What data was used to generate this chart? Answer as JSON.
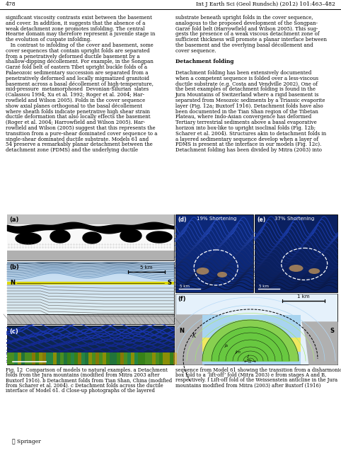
{
  "page_num": "478",
  "journal_header": "Int J Earth Sci (Geol Rundsch) (2012) 101:463–482",
  "background_color": "#ffffff",
  "left_col_lines": [
    "significant viscosity contrasts exist between the basement",
    "and cover. In addition, it suggests that the absence of a",
    "weak detachment zone promotes infolding. The central",
    "Hearne domain may therefore represent a juvenile stage in",
    "the evolution of cuspate infolding.",
    "   In contrast to infolding of the cover and basement, some",
    "cover sequences that contain upright folds are separated",
    "from a penetratively deformed ductile basement by a",
    "shallow-dipping décollement. For example, in the Songpan",
    "Garzé fold belt of eastern Tibet upright buckle folds of a",
    "Palaeozoic sedimentary succession are separated from a",
    "penetratively deformed and locally migmatized granitoid",
    "basement across a basal décollement of high-temperature,",
    "mid-pressure  metamorphosed  Devonian-Silurian  slates",
    "(Calassou 1994; Xu et al. 1992; Roger et al. 2004; Har-",
    "rowfield and Wilson 2005). Folds in the cover sequence",
    "show axial planes orthogonal to the basal décollement",
    "where sheath folds indicate penetrative high shear strain",
    "ductile deformation that also locally effects the basement",
    "(Roger et al. 2004; Harrowfield and Wilson 2005). Har-",
    "rowfield and Wilson (2005) suggest that this represents the",
    "transition from a pure-shear dominated cover sequence to a",
    "single-shear dominated ductile substrate. Models 61 and",
    "54 preserve a remarkably planar detachment between the",
    "detachment zone (PDMS) and the underlying ductile"
  ],
  "right_col_lines": [
    "substrate beneath upright folds in the cover sequence,",
    "analogous to the proposed development of the Songpan-",
    "Garzé fold belt (Harrowfield and Wilson 2005). This sug-",
    "gests the presence of a weak viscous detachment zone of",
    "sufficient thickness will promote a planar interface between",
    "the basement and the overlying basal décollement and",
    "cover sequence.",
    "",
    "Detachment folding",
    "",
    "Detachment folding has been extensively documented",
    "when a competent sequence is folded over a less-viscous",
    "ductile substrate (e.g. Costa and Vendville 2002). One of",
    "the best examples of detachment folding is found in the",
    "Jura Mountains of Switzerland where a rigid basement is",
    "separated from Mesozoic sediments by a Triassic evaporite",
    "layer (Fig. 12a; Buxtorf 1916). Detachment folds have also",
    "been documented in the Tian Shan region of the Tibetan",
    "Plateau, where Indo-Asian convergence has deformed",
    "Tertiary terrestrial sediments above a basal evaporative",
    "horizon into box-like to upright isoclinal folds (Fig. 12b;",
    "Scharer et al. 2004). Structures akin to detachment folds in",
    "a layered sedimentary sequence develop when a layer of",
    "PDMS is present at the interface in our models (Fig. 12c).",
    "Detachment folding has been divided by Mitra (2003) into"
  ],
  "cap_left_lines": [
    "Fig. 12  Comparison of models to natural examples. a Detachment",
    "folds from the Jura mountains (modified from Mitra 2003 after",
    "Buxtorf 1916). b Detachment folds from Tian Shan, China (modified",
    "from Scharer et al. 2004). c Detachment folds across the ductile",
    "interface of Model 61. d Close-up photographs of the layered"
  ],
  "cap_right_lines": [
    "sequence from Model 61 showing the transition from a disharmonic",
    "box fold to a ‘lift-off’ fold (Mitra 2003) e from stages A and B,",
    "respectively. f Lift-off fold of the Weissenstein anticline in the Jura",
    "mountains modified from Mitra (2003) after Buxtorf (1916)"
  ]
}
